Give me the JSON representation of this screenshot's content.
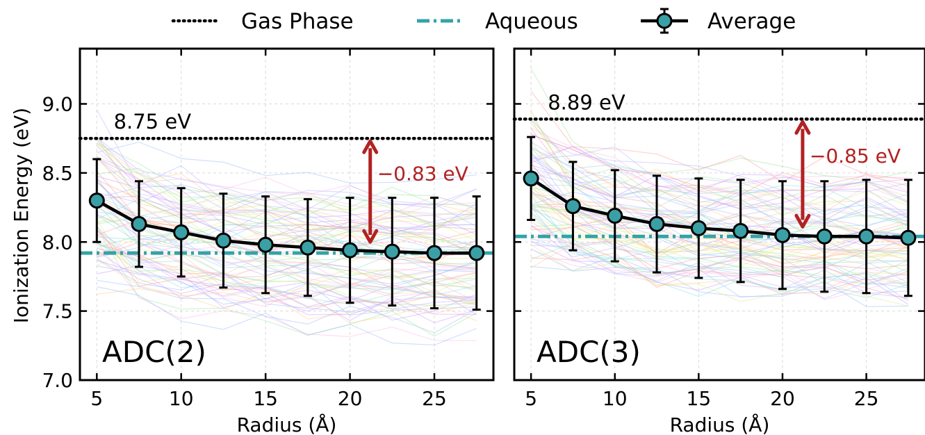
{
  "legend": {
    "placement": "top",
    "items": [
      {
        "label": "Gas Phase",
        "style": "dotted",
        "color": "#000000"
      },
      {
        "label": "Aqueous",
        "style": "dash-dot",
        "color": "#33a3a8"
      },
      {
        "label": "Average",
        "style": "line-marker-errorbar",
        "color": "#000000",
        "marker_color": "#3aa0a6"
      }
    ]
  },
  "colors": {
    "gas": "#000000",
    "aqueous": "#33a3a8",
    "average_line": "#000000",
    "average_marker": "#3aa0a6",
    "annotation": "#b22222"
  },
  "chart_data": [
    {
      "type": "line",
      "panel_label": "ADC(2)",
      "xlabel": "Radius (Å)",
      "ylabel": "Ionization Energy (eV)",
      "xlim": [
        4,
        28.5
      ],
      "ylim": [
        7.0,
        9.4
      ],
      "xticks": [
        5,
        10,
        15,
        20,
        25
      ],
      "yticks": [
        7.0,
        7.5,
        8.0,
        8.5,
        9.0
      ],
      "grid": true,
      "gas_phase": 8.75,
      "aqueous": 7.92,
      "gas_label": "8.75 eV",
      "shift_label": "−0.83 eV",
      "arrow_x": 21.2,
      "series": [
        {
          "name": "Average",
          "x": [
            5,
            7.5,
            10,
            12.5,
            15,
            17.5,
            20,
            22.5,
            25,
            27.5
          ],
          "y": [
            8.3,
            8.13,
            8.07,
            8.01,
            7.98,
            7.96,
            7.94,
            7.93,
            7.92,
            7.92
          ],
          "yerr": [
            0.3,
            0.31,
            0.32,
            0.34,
            0.35,
            0.35,
            0.38,
            0.39,
            0.4,
            0.41
          ]
        }
      ]
    },
    {
      "type": "line",
      "panel_label": "ADC(3)",
      "xlabel": "Radius (Å)",
      "ylabel": "",
      "xlim": [
        4,
        28.5
      ],
      "ylim": [
        7.0,
        9.4
      ],
      "xticks": [
        5,
        10,
        15,
        20,
        25
      ],
      "yticks": [
        7.0,
        7.5,
        8.0,
        8.5,
        9.0
      ],
      "grid": true,
      "gas_phase": 8.89,
      "aqueous": 8.04,
      "gas_label": "8.89 eV",
      "shift_label": "−0.85 eV",
      "arrow_x": 21.2,
      "series": [
        {
          "name": "Average",
          "x": [
            5,
            7.5,
            10,
            12.5,
            15,
            17.5,
            20,
            22.5,
            25,
            27.5
          ],
          "y": [
            8.46,
            8.26,
            8.19,
            8.13,
            8.1,
            8.08,
            8.05,
            8.04,
            8.04,
            8.03
          ],
          "yerr": [
            0.3,
            0.32,
            0.33,
            0.35,
            0.36,
            0.37,
            0.39,
            0.4,
            0.41,
            0.42
          ]
        }
      ]
    }
  ]
}
